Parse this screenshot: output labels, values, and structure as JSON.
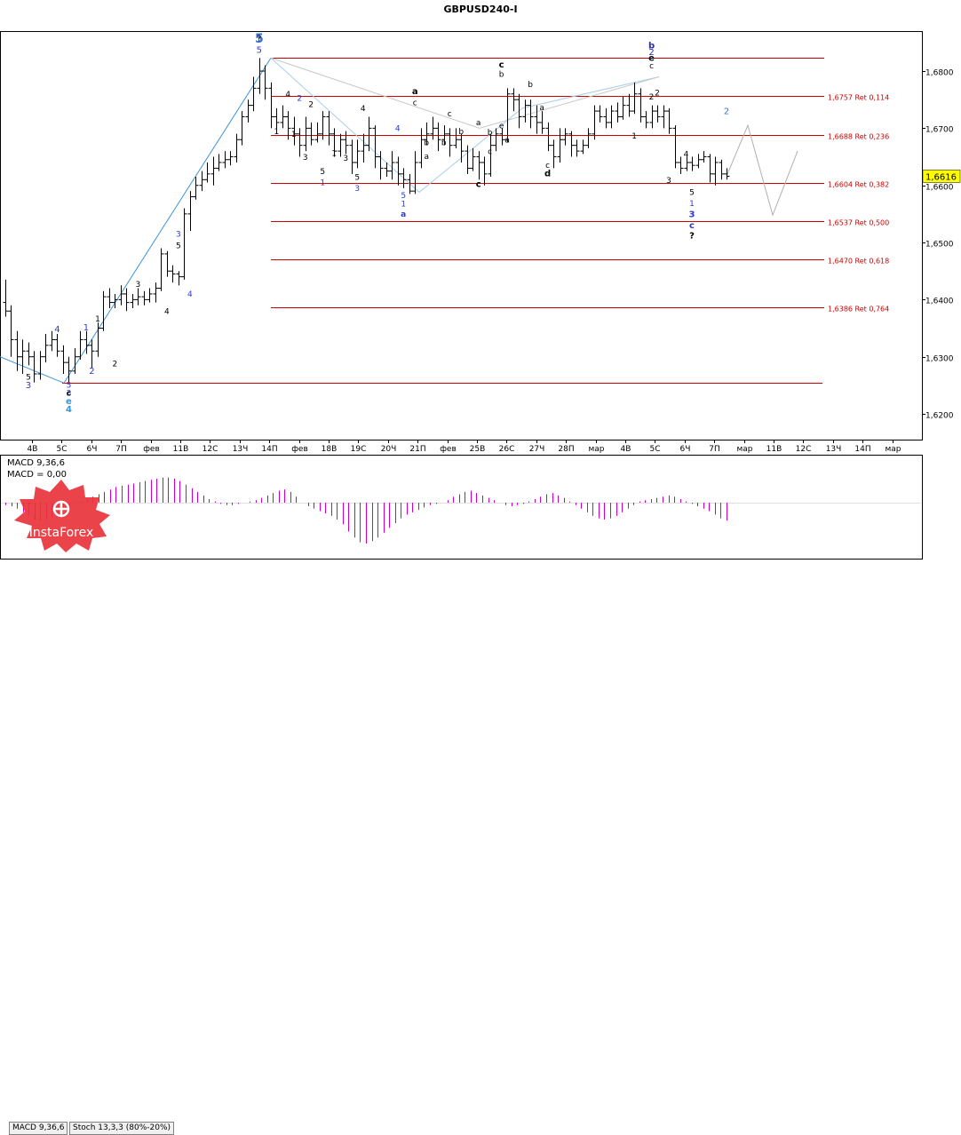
{
  "chart_data": {
    "type": "candlestick",
    "title": "GBPUSD240-I",
    "price_axis": {
      "ticks": [
        "1,6800",
        "1,6700",
        "1,6600",
        "1,6500",
        "1,6400",
        "1,6300",
        "1,6200"
      ],
      "tick_values": [
        1.68,
        1.67,
        1.66,
        1.65,
        1.64,
        1.63,
        1.62
      ],
      "range": [
        1.6155,
        1.687
      ],
      "current_price_label": "1,6616",
      "current_price": 1.6616
    },
    "time_axis": {
      "ticks": [
        "4В",
        "5С",
        "6Ч",
        "7П",
        "фев",
        "11В",
        "12С",
        "13Ч",
        "14П",
        "фев",
        "18В",
        "19С",
        "20Ч",
        "21П",
        "фев",
        "25В",
        "26С",
        "27Ч",
        "28П",
        "мар",
        "4В",
        "5С",
        "6Ч",
        "7П",
        "мар",
        "11В",
        "12С",
        "13Ч",
        "14П",
        "мар"
      ]
    },
    "fibonacci_levels": [
      {
        "price": 1.6757,
        "label": "1,6757 Ret 0,114"
      },
      {
        "price": 1.6688,
        "label": "1,6688 Ret 0,236"
      },
      {
        "price": 1.6604,
        "label": "1,6604 Ret 0,382"
      },
      {
        "price": 1.6537,
        "label": "1,6537 Ret 0,500"
      },
      {
        "price": 1.647,
        "label": "1,6470 Ret 0,618"
      },
      {
        "price": 1.6386,
        "label": "1,6386 Ret 0,764"
      }
    ],
    "unlabeled_levels": [
      1.6823,
      1.6254
    ],
    "bars": [
      [
        1.6395,
        1.638,
        1.6435,
        1.637
      ],
      [
        1.638,
        1.633,
        1.639,
        1.63
      ],
      [
        1.633,
        1.63,
        1.6345,
        1.6275
      ],
      [
        1.63,
        1.631,
        1.633,
        1.627
      ],
      [
        1.631,
        1.63,
        1.6325,
        1.6285
      ],
      [
        1.63,
        1.627,
        1.631,
        1.6255
      ],
      [
        1.627,
        1.63,
        1.631,
        1.626
      ],
      [
        1.63,
        1.632,
        1.634,
        1.629
      ],
      [
        1.632,
        1.633,
        1.6345,
        1.631
      ],
      [
        1.633,
        1.631,
        1.634,
        1.63
      ],
      [
        1.631,
        1.629,
        1.632,
        1.627
      ],
      [
        1.629,
        1.6275,
        1.63,
        1.6255
      ],
      [
        1.6275,
        1.63,
        1.6315,
        1.627
      ],
      [
        1.63,
        1.633,
        1.6345,
        1.6295
      ],
      [
        1.633,
        1.632,
        1.6345,
        1.6305
      ],
      [
        1.632,
        1.631,
        1.633,
        1.628
      ],
      [
        1.631,
        1.635,
        1.636,
        1.63
      ],
      [
        1.635,
        1.6405,
        1.6415,
        1.6345
      ],
      [
        1.6405,
        1.6395,
        1.642,
        1.6385
      ],
      [
        1.6395,
        1.64,
        1.641,
        1.6385
      ],
      [
        1.64,
        1.641,
        1.6425,
        1.639
      ],
      [
        1.641,
        1.6395,
        1.642,
        1.638
      ],
      [
        1.6395,
        1.64,
        1.641,
        1.6385
      ],
      [
        1.64,
        1.6405,
        1.642,
        1.639
      ],
      [
        1.6405,
        1.64,
        1.6415,
        1.639
      ],
      [
        1.64,
        1.641,
        1.642,
        1.6395
      ],
      [
        1.641,
        1.642,
        1.643,
        1.6395
      ],
      [
        1.642,
        1.648,
        1.649,
        1.6415
      ],
      [
        1.648,
        1.645,
        1.6485,
        1.644
      ],
      [
        1.645,
        1.6445,
        1.646,
        1.643
      ],
      [
        1.6445,
        1.644,
        1.645,
        1.6425
      ],
      [
        1.644,
        1.655,
        1.656,
        1.6435
      ],
      [
        1.655,
        1.658,
        1.659,
        1.652
      ],
      [
        1.658,
        1.66,
        1.6615,
        1.6575
      ],
      [
        1.66,
        1.661,
        1.6625,
        1.659
      ],
      [
        1.661,
        1.662,
        1.664,
        1.6605
      ],
      [
        1.662,
        1.663,
        1.665,
        1.66
      ],
      [
        1.663,
        1.664,
        1.6655,
        1.6625
      ],
      [
        1.664,
        1.6645,
        1.666,
        1.663
      ],
      [
        1.6645,
        1.665,
        1.666,
        1.6635
      ],
      [
        1.665,
        1.668,
        1.669,
        1.664
      ],
      [
        1.668,
        1.672,
        1.673,
        1.667
      ],
      [
        1.672,
        1.674,
        1.675,
        1.671
      ],
      [
        1.674,
        1.677,
        1.679,
        1.673
      ],
      [
        1.677,
        1.68,
        1.6823,
        1.676
      ],
      [
        1.68,
        1.677,
        1.681,
        1.675
      ],
      [
        1.677,
        1.672,
        1.678,
        1.67
      ],
      [
        1.672,
        1.671,
        1.6735,
        1.669
      ],
      [
        1.671,
        1.672,
        1.674,
        1.67
      ],
      [
        1.672,
        1.67,
        1.673,
        1.668
      ],
      [
        1.67,
        1.669,
        1.672,
        1.667
      ],
      [
        1.669,
        1.667,
        1.67,
        1.665
      ],
      [
        1.667,
        1.67,
        1.672,
        1.666
      ],
      [
        1.67,
        1.668,
        1.671,
        1.667
      ],
      [
        1.668,
        1.669,
        1.671,
        1.6675
      ],
      [
        1.669,
        1.672,
        1.673,
        1.668
      ],
      [
        1.672,
        1.669,
        1.673,
        1.667
      ],
      [
        1.669,
        1.666,
        1.67,
        1.665
      ],
      [
        1.666,
        1.668,
        1.669,
        1.665
      ],
      [
        1.668,
        1.667,
        1.6695,
        1.6655
      ],
      [
        1.667,
        1.664,
        1.668,
        1.662
      ],
      [
        1.664,
        1.666,
        1.668,
        1.663
      ],
      [
        1.666,
        1.667,
        1.669,
        1.664
      ],
      [
        1.667,
        1.67,
        1.672,
        1.666
      ],
      [
        1.67,
        1.665,
        1.6705,
        1.663
      ],
      [
        1.665,
        1.663,
        1.666,
        1.661
      ],
      [
        1.663,
        1.6625,
        1.664,
        1.6615
      ],
      [
        1.6625,
        1.664,
        1.666,
        1.661
      ],
      [
        1.664,
        1.662,
        1.665,
        1.66
      ],
      [
        1.662,
        1.661,
        1.663,
        1.6595
      ],
      [
        1.661,
        1.659,
        1.662,
        1.6585
      ],
      [
        1.659,
        1.664,
        1.666,
        1.6585
      ],
      [
        1.664,
        1.668,
        1.67,
        1.663
      ],
      [
        1.668,
        1.669,
        1.671,
        1.667
      ],
      [
        1.669,
        1.67,
        1.672,
        1.668
      ],
      [
        1.67,
        1.668,
        1.671,
        1.666
      ],
      [
        1.668,
        1.669,
        1.6705,
        1.667
      ],
      [
        1.669,
        1.667,
        1.67,
        1.665
      ],
      [
        1.667,
        1.668,
        1.67,
        1.6665
      ],
      [
        1.668,
        1.666,
        1.669,
        1.664
      ],
      [
        1.666,
        1.663,
        1.667,
        1.662
      ],
      [
        1.663,
        1.665,
        1.6665,
        1.6625
      ],
      [
        1.665,
        1.664,
        1.666,
        1.661
      ],
      [
        1.664,
        1.662,
        1.665,
        1.66
      ],
      [
        1.662,
        1.667,
        1.669,
        1.6615
      ],
      [
        1.667,
        1.669,
        1.67,
        1.666
      ],
      [
        1.669,
        1.668,
        1.67,
        1.667
      ],
      [
        1.668,
        1.676,
        1.677,
        1.6675
      ],
      [
        1.676,
        1.675,
        1.677,
        1.673
      ],
      [
        1.675,
        1.672,
        1.676,
        1.67
      ],
      [
        1.672,
        1.674,
        1.675,
        1.671
      ],
      [
        1.674,
        1.672,
        1.675,
        1.67
      ],
      [
        1.672,
        1.671,
        1.674,
        1.669
      ],
      [
        1.671,
        1.67,
        1.673,
        1.669
      ],
      [
        1.67,
        1.667,
        1.671,
        1.666
      ],
      [
        1.667,
        1.665,
        1.668,
        1.663
      ],
      [
        1.665,
        1.668,
        1.67,
        1.664
      ],
      [
        1.668,
        1.669,
        1.67,
        1.667
      ],
      [
        1.669,
        1.667,
        1.6695,
        1.665
      ],
      [
        1.667,
        1.666,
        1.668,
        1.665
      ],
      [
        1.666,
        1.667,
        1.668,
        1.6655
      ],
      [
        1.667,
        1.669,
        1.67,
        1.6665
      ],
      [
        1.669,
        1.673,
        1.674,
        1.668
      ],
      [
        1.673,
        1.672,
        1.674,
        1.671
      ],
      [
        1.672,
        1.671,
        1.6735,
        1.67
      ],
      [
        1.671,
        1.673,
        1.674,
        1.67
      ],
      [
        1.673,
        1.672,
        1.6745,
        1.671
      ],
      [
        1.672,
        1.674,
        1.6755,
        1.6715
      ],
      [
        1.674,
        1.673,
        1.676,
        1.672
      ],
      [
        1.673,
        1.676,
        1.678,
        1.6725
      ],
      [
        1.676,
        1.672,
        1.677,
        1.671
      ],
      [
        1.672,
        1.671,
        1.673,
        1.67
      ],
      [
        1.671,
        1.673,
        1.674,
        1.67
      ],
      [
        1.673,
        1.672,
        1.674,
        1.671
      ],
      [
        1.672,
        1.673,
        1.674,
        1.67
      ],
      [
        1.673,
        1.67,
        1.6735,
        1.669
      ],
      [
        1.67,
        1.664,
        1.6705,
        1.663
      ],
      [
        1.664,
        1.663,
        1.665,
        1.662
      ],
      [
        1.663,
        1.664,
        1.665,
        1.6625
      ],
      [
        1.664,
        1.6635,
        1.665,
        1.6625
      ],
      [
        1.6635,
        1.6645,
        1.6655,
        1.663
      ],
      [
        1.6645,
        1.665,
        1.666,
        1.664
      ],
      [
        1.665,
        1.662,
        1.6655,
        1.6605
      ],
      [
        1.662,
        1.664,
        1.665,
        1.66
      ],
      [
        1.664,
        1.662,
        1.6645,
        1.661
      ],
      [
        1.662,
        1.6616,
        1.663,
        1.661
      ]
    ],
    "forecast_path": [
      [
        1.6616,
        0
      ],
      [
        1.6705,
        6
      ],
      [
        1.6548,
        13
      ],
      [
        1.666,
        20
      ]
    ],
    "wave_lines": [
      {
        "points": [
          [
            1.6254,
            0
          ],
          [
            1.6823,
            35
          ]
        ],
        "color": "#3a94d6"
      },
      {
        "points": [
          [
            1.6823,
            35
          ],
          [
            1.6254,
            0
          ]
        ],
        "color": "#a9cfe8"
      }
    ],
    "wave_labels": [
      {
        "text": "5",
        "color": "#3b73d6"
      },
      {
        "text": "?",
        "color": "#000000"
      },
      {
        "text": "5",
        "color": "#2c3ad6"
      },
      {
        "text": "b",
        "color": "#2a2ab0"
      },
      {
        "text": "2",
        "color": "#2a2ab0"
      },
      {
        "text": "e",
        "color": "#000000"
      },
      {
        "text": "c",
        "color": "#000000"
      },
      {
        "text": "2",
        "color": "#000000"
      },
      {
        "text": "4",
        "color": "#000000"
      },
      {
        "text": "2",
        "color": "#2c3ad6"
      },
      {
        "text": "a",
        "color": "#000000"
      },
      {
        "text": "c",
        "color": "#000000"
      },
      {
        "text": "2",
        "color": "#000000"
      },
      {
        "text": "1",
        "color": "#000000"
      },
      {
        "text": "4",
        "color": "#000000"
      },
      {
        "text": "4",
        "color": "#2c3ad6"
      },
      {
        "text": "3",
        "color": "#000000"
      },
      {
        "text": "1",
        "color": "#000000"
      },
      {
        "text": "5",
        "color": "#000000"
      },
      {
        "text": "1",
        "color": "#2c3ad6"
      },
      {
        "text": "3",
        "color": "#000000"
      },
      {
        "text": "5",
        "color": "#000000"
      },
      {
        "text": "3",
        "color": "#2c3ad6"
      },
      {
        "text": "5",
        "color": "#2c3ad6"
      },
      {
        "text": "1",
        "color": "#2c3ad6"
      },
      {
        "text": "a",
        "color": "#2c3ad6"
      },
      {
        "text": "b",
        "color": "#000000"
      },
      {
        "text": "c",
        "color": "#000000"
      },
      {
        "text": "b",
        "color": "#000000"
      },
      {
        "text": "a",
        "color": "#000000"
      },
      {
        "text": "b",
        "color": "#000000"
      },
      {
        "text": "c",
        "color": "#000000"
      },
      {
        "text": "b",
        "color": "#000000"
      },
      {
        "text": "c",
        "color": "#000000"
      },
      {
        "text": "c",
        "color": "#000000"
      },
      {
        "text": "a",
        "color": "#000000"
      },
      {
        "text": "b",
        "color": "#000000"
      },
      {
        "text": "a",
        "color": "#000000"
      },
      {
        "text": "b",
        "color": "#000000"
      },
      {
        "text": "a",
        "color": "#000000"
      },
      {
        "text": "c",
        "color": "#000000"
      },
      {
        "text": "d",
        "color": "#000000"
      },
      {
        "text": "e",
        "color": "#000000"
      },
      {
        "text": "1",
        "color": "#000000"
      },
      {
        "text": "2",
        "color": "#000000"
      },
      {
        "text": "4",
        "color": "#000000"
      },
      {
        "text": "3",
        "color": "#000000"
      },
      {
        "text": "5",
        "color": "#000000"
      },
      {
        "text": "1",
        "color": "#2c3ad6"
      },
      {
        "text": "3",
        "color": "#2c3ad6"
      },
      {
        "text": "c",
        "color": "#2c3ad6"
      },
      {
        "text": "?",
        "color": "#000000"
      },
      {
        "text": "2",
        "color": "#3b73d6"
      },
      {
        "text": "5",
        "color": "#2c3ad6"
      },
      {
        "text": "3",
        "color": "#2c3ad6"
      },
      {
        "text": "c",
        "color": "#000000"
      },
      {
        "text": "e",
        "color": "#3a94d6"
      },
      {
        "text": "4",
        "color": "#3a94d6"
      },
      {
        "text": "5",
        "color": "#000000"
      },
      {
        "text": "3",
        "color": "#2c3ad6"
      },
      {
        "text": "4",
        "color": "#2c3ad6"
      },
      {
        "text": "1",
        "color": "#2c3ad6"
      },
      {
        "text": "2",
        "color": "#2c3ad6"
      },
      {
        "text": "1",
        "color": "#000000"
      },
      {
        "text": "2",
        "color": "#000000"
      },
      {
        "text": "3",
        "color": "#000000"
      },
      {
        "text": "4",
        "color": "#000000"
      },
      {
        "text": "3",
        "color": "#2c3ad6"
      },
      {
        "text": "5",
        "color": "#000000"
      },
      {
        "text": "4",
        "color": "#2c3ad6"
      },
      {
        "text": "1",
        "color": "#000000"
      }
    ],
    "macd": {
      "label": "MACD 9,36,6",
      "value_label": "MACD = 0,00",
      "values": [
        -4,
        -6,
        -10,
        -16,
        -22,
        -28,
        -30,
        -28,
        -24,
        -18,
        -12,
        -6,
        -2,
        2,
        6,
        10,
        14,
        18,
        22,
        26,
        28,
        30,
        32,
        34,
        36,
        38,
        40,
        42,
        42,
        40,
        36,
        30,
        24,
        18,
        12,
        6,
        2,
        -2,
        -4,
        -4,
        -2,
        0,
        2,
        4,
        8,
        12,
        16,
        20,
        22,
        18,
        10,
        0,
        -6,
        -10,
        -14,
        -18,
        -22,
        -28,
        -36,
        -48,
        -58,
        -66,
        -68,
        -64,
        -58,
        -50,
        -42,
        -34,
        -26,
        -20,
        -16,
        -12,
        -8,
        -4,
        -2,
        0,
        4,
        10,
        14,
        18,
        20,
        16,
        12,
        8,
        4,
        0,
        -4,
        -6,
        -4,
        -2,
        2,
        6,
        10,
        14,
        16,
        12,
        8,
        2,
        -4,
        -10,
        -16,
        -22,
        -26,
        -28,
        -26,
        -22,
        -16,
        -10,
        -4,
        2,
        4,
        6,
        8,
        10,
        12,
        10,
        6,
        2,
        -2,
        -6,
        -10,
        -14,
        -20,
        -26,
        -30
      ],
      "color": "#cc00cc"
    },
    "indicator_tabs": [
      "MACD 9,36,6",
      "Stoch 13,3,3 (80%-20%)"
    ],
    "logo_text": "InstaForex"
  }
}
